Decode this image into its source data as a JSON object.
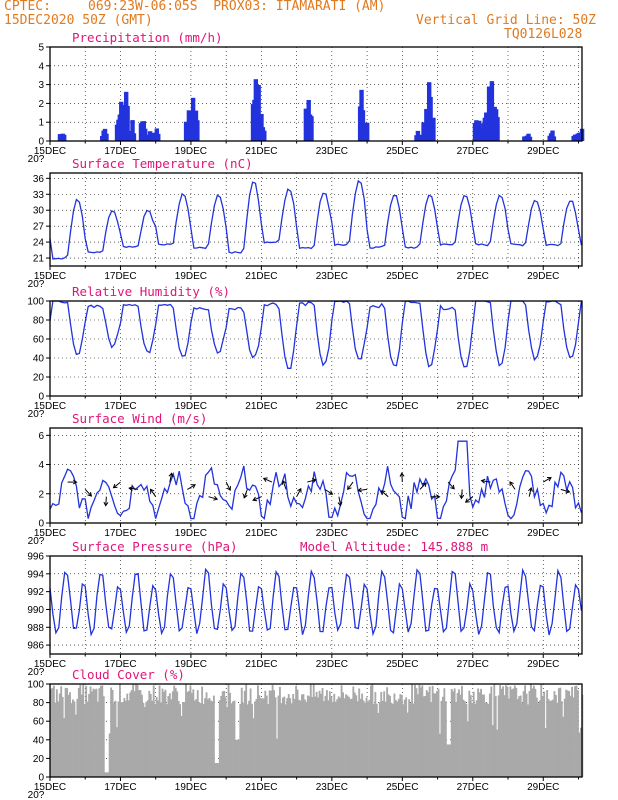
{
  "header": {
    "source": "CPTEC:",
    "location": "069:23W-06:05S  PROX03: ITAMARATI (AM)",
    "run": "15DEC2020 50Z (GMT)",
    "grid_note": "Vertical Grid Line: 50Z",
    "model_code": "TQ0126L028"
  },
  "colors": {
    "header": "#e07a20",
    "title": "#e0157a",
    "series": "#2233dd",
    "cloud": "#a9a9a9",
    "grid": "#000000"
  },
  "x_tick_labels": [
    "15DEC",
    "17DEC",
    "19DEC",
    "21DEC",
    "23DEC",
    "25DEC",
    "27DEC",
    "29DEC"
  ],
  "chart_data": [
    {
      "type": "bar",
      "title": "Precipitation (mm/h)",
      "ylim": [
        0,
        5
      ],
      "yticks": [
        0,
        1,
        2,
        3,
        4,
        5
      ],
      "x_label_repeat": "20?",
      "events": [
        {
          "day": 15.3,
          "v": 0.5
        },
        {
          "day": 16.5,
          "v": 0.6
        },
        {
          "day": 16.9,
          "v": 1.0
        },
        {
          "day": 17.0,
          "v": 2.6
        },
        {
          "day": 17.1,
          "v": 1.9
        },
        {
          "day": 17.3,
          "v": 0.8
        },
        {
          "day": 17.6,
          "v": 1.3
        },
        {
          "day": 17.8,
          "v": 0.5
        },
        {
          "day": 17.95,
          "v": 0.7
        },
        {
          "day": 18.9,
          "v": 1.5
        },
        {
          "day": 19.0,
          "v": 2.4
        },
        {
          "day": 19.1,
          "v": 1.4
        },
        {
          "day": 20.8,
          "v": 3.3
        },
        {
          "day": 20.9,
          "v": 1.7
        },
        {
          "day": 21.0,
          "v": 0.6
        },
        {
          "day": 22.3,
          "v": 1.8
        },
        {
          "day": 23.8,
          "v": 3.1
        },
        {
          "day": 23.9,
          "v": 1.0
        },
        {
          "day": 25.4,
          "v": 0.5
        },
        {
          "day": 25.6,
          "v": 1.0
        },
        {
          "day": 25.7,
          "v": 2.5
        },
        {
          "day": 25.8,
          "v": 1.5
        },
        {
          "day": 27.1,
          "v": 1.2
        },
        {
          "day": 27.3,
          "v": 2.1
        },
        {
          "day": 27.5,
          "v": 3.2
        },
        {
          "day": 27.6,
          "v": 2.2
        },
        {
          "day": 28.5,
          "v": 0.5
        },
        {
          "day": 29.2,
          "v": 0.6
        },
        {
          "day": 29.9,
          "v": 0.4
        },
        {
          "day": 30.0,
          "v": 0.7
        }
      ]
    },
    {
      "type": "line",
      "title": "Surface Temperature (nC)",
      "ylim": [
        19.5,
        37
      ],
      "yticks": [
        21,
        24,
        27,
        30,
        33,
        36
      ],
      "x_label_repeat": "20?",
      "base_min": [
        21,
        22,
        23,
        23.5,
        23,
        22,
        24,
        23,
        23.5,
        23,
        23,
        23.5,
        23.5,
        23.5,
        23.5
      ],
      "day_max": [
        32,
        30,
        30,
        33,
        33,
        35.5,
        34,
        33.5,
        35.5,
        33,
        33,
        33,
        33,
        32
      ],
      "series": [
        {
          "values": []
        }
      ]
    },
    {
      "type": "line",
      "title": "Relative Humidity (%)",
      "ylim": [
        0,
        100
      ],
      "yticks": [
        0,
        20,
        40,
        60,
        80,
        100
      ],
      "x_label_repeat": "20?",
      "day_max": [
        100,
        95,
        97,
        97,
        92,
        92,
        97,
        97,
        100,
        95,
        100,
        93,
        100,
        100,
        100
      ],
      "afternoon_min": [
        42,
        52,
        45,
        40,
        45,
        40,
        28,
        32,
        38,
        30,
        32,
        30,
        33,
        38,
        38
      ],
      "series": [
        {
          "values": []
        }
      ]
    },
    {
      "type": "line",
      "title": "Surface Wind (m/s)",
      "ylim": [
        0,
        6.5
      ],
      "yticks": [
        0,
        2,
        4,
        6
      ],
      "x_label_repeat": "20?",
      "arrow_days": [
        15.5,
        16.0,
        16.6,
        17.0,
        17.5,
        18.0,
        18.4,
        18.9,
        19.5,
        20.0,
        20.6,
        21.0,
        21.3,
        21.7,
        22.0,
        22.3,
        22.8,
        23.2,
        23.6,
        24.0,
        24.6,
        25.0,
        25.5,
        25.8,
        26.3,
        26.7,
        27.0,
        27.5,
        28.2,
        28.6,
        29.0,
        29.5
      ],
      "series": [
        {
          "values": []
        }
      ]
    },
    {
      "type": "line",
      "title": "Surface Pressure (hPa)",
      "extra_label": "Model Altitude: 145.888  m",
      "ylim": [
        985,
        996
      ],
      "yticks": [
        986,
        988,
        990,
        992,
        994,
        996
      ],
      "x_label_repeat": "20?",
      "series": [
        {
          "values": []
        }
      ]
    },
    {
      "type": "bar",
      "title": "Cloud Cover (%)",
      "ylim": [
        0,
        100
      ],
      "yticks": [
        0,
        20,
        40,
        60,
        80,
        100
      ],
      "x_label_repeat": "20?",
      "typical_range": [
        78,
        100
      ],
      "deep_dips": [
        {
          "day": 16.6,
          "v": 5
        },
        {
          "day": 19.7,
          "v": 15
        },
        {
          "day": 20.3,
          "v": 40
        },
        {
          "day": 26.3,
          "v": 35
        }
      ]
    }
  ]
}
